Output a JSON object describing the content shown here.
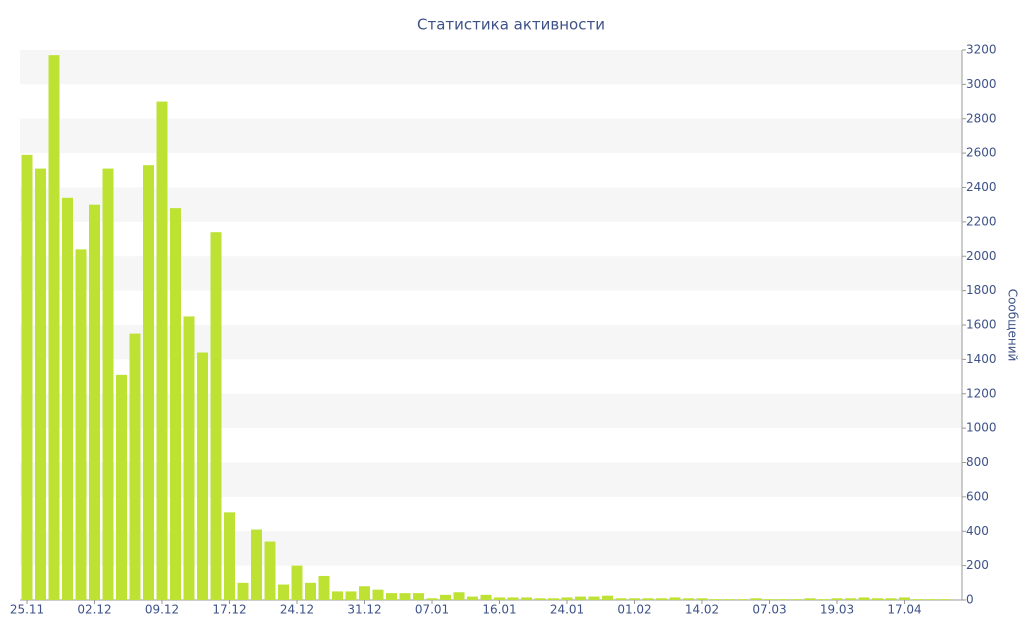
{
  "chart_data": {
    "type": "bar",
    "title": "Статистика активности",
    "y_label": "Сообщений",
    "color": "#bde234",
    "categories": [
      "25.11",
      null,
      null,
      null,
      null,
      "02.12",
      null,
      null,
      null,
      null,
      "09.12",
      null,
      null,
      null,
      null,
      "17.12",
      null,
      null,
      null,
      null,
      "24.12",
      null,
      null,
      null,
      null,
      "31.12",
      null,
      null,
      null,
      null,
      "07.01",
      null,
      null,
      null,
      null,
      "16.01",
      null,
      null,
      null,
      null,
      "24.01",
      null,
      null,
      null,
      null,
      "01.02",
      null,
      null,
      null,
      null,
      "14.02",
      null,
      null,
      null,
      null,
      "07.03",
      null,
      null,
      null,
      null,
      "19.03",
      null,
      null,
      null,
      null,
      "17.04",
      null,
      null,
      null
    ],
    "values": [
      2590,
      2510,
      3170,
      2340,
      2040,
      2300,
      2510,
      1310,
      1550,
      2530,
      2900,
      2280,
      1650,
      1440,
      2140,
      510,
      100,
      410,
      340,
      90,
      200,
      100,
      140,
      50,
      50,
      80,
      60,
      40,
      40,
      40,
      10,
      30,
      45,
      20,
      30,
      15,
      15,
      15,
      10,
      10,
      15,
      20,
      20,
      25,
      10,
      10,
      10,
      10,
      15,
      10,
      10,
      5,
      5,
      5,
      10,
      5,
      5,
      5,
      10,
      5,
      10,
      10,
      15,
      10,
      10,
      15,
      5,
      5,
      5
    ],
    "ylim": [
      0,
      3200
    ],
    "yticks": [
      0,
      200,
      400,
      600,
      800,
      1000,
      1200,
      1400,
      1600,
      1800,
      2000,
      2200,
      2400,
      2600,
      2800,
      3000,
      3200
    ],
    "grid": true
  }
}
